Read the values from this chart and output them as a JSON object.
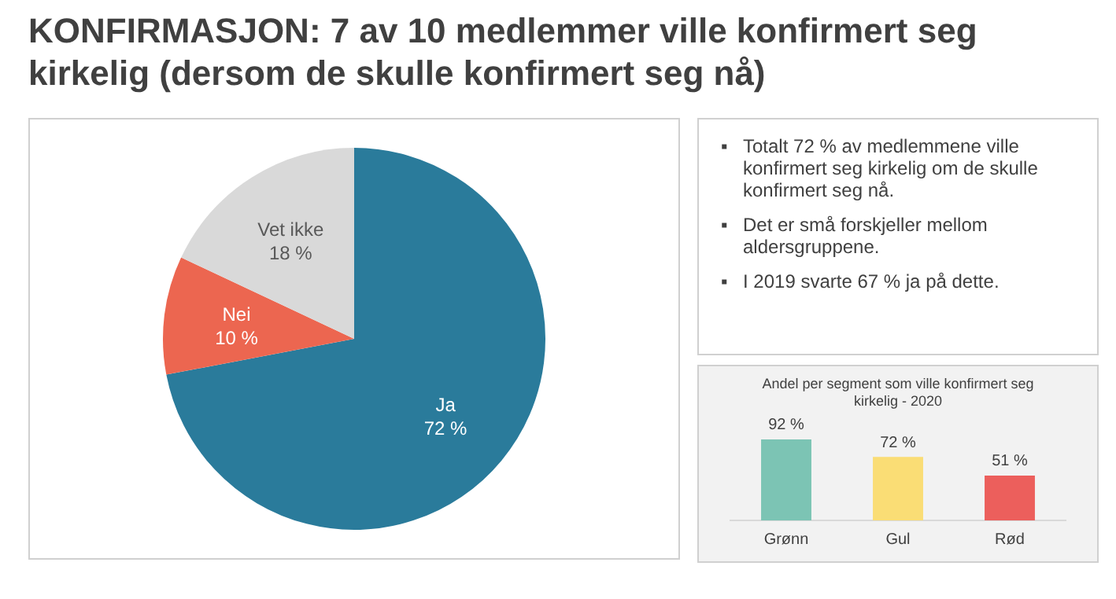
{
  "chart_data": [
    {
      "type": "pie",
      "title": "KONFIRMASJON: 7 av 10 medlemmer ville konfirmert seg kirkelig (dersom de skulle konfirmert seg nå)",
      "categories": [
        "Ja",
        "Nei",
        "Vet ikke"
      ],
      "values": [
        72,
        10,
        18
      ],
      "colors": [
        "#2a7b9b",
        "#ec6650",
        "#d9d9d9"
      ],
      "value_labels": [
        "72 %",
        "10 %",
        "18 %"
      ],
      "legend": false
    },
    {
      "type": "other",
      "annotations": [
        "▪ Totalt 72 % av medlemmene ville konfirmert seg kirkelig om de skulle konfirmert seg nå.",
        "▪ Det er små forskjeller mellom aldersgruppene.",
        "▪ I 2019 svarte 67 % ja på dette."
      ]
    },
    {
      "type": "bar",
      "title": "Andel per segment som ville konfirmert seg kirkelig - 2020",
      "categories": [
        "Grønn",
        "Gul",
        "Rød"
      ],
      "values": [
        92,
        72,
        51
      ],
      "colors": [
        "#7cc4b4",
        "#fadd75",
        "#ec5f5c"
      ],
      "value_labels": [
        "92 %",
        "72 %",
        "51 %"
      ],
      "tick_labels": "x",
      "grid": false,
      "legend": false
    }
  ]
}
